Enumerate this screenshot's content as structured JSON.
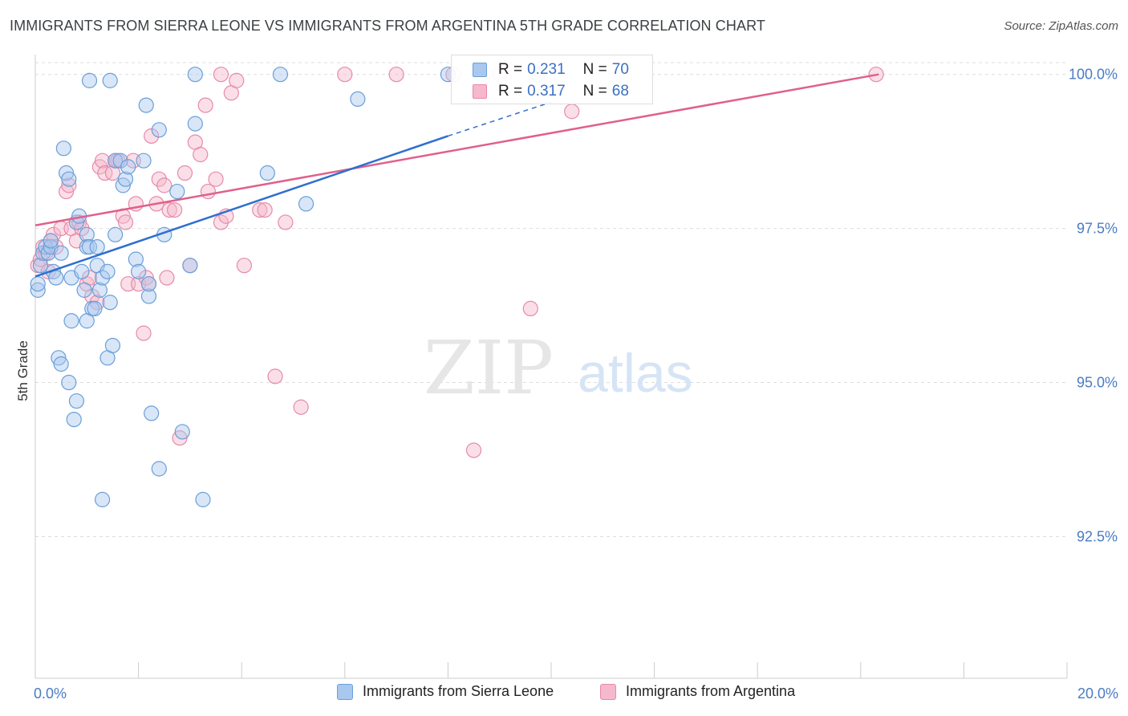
{
  "title": "IMMIGRANTS FROM SIERRA LEONE VS IMMIGRANTS FROM ARGENTINA 5TH GRADE CORRELATION CHART",
  "source": "Source: ZipAtlas.com",
  "watermark": {
    "zip": "ZIP",
    "atlas": "atlas"
  },
  "colors": {
    "blue_fill": "#a8c8f0",
    "blue_stroke": "#6a9fd8",
    "blue_line": "#2f6fcf",
    "pink_fill": "#f5b8cc",
    "pink_stroke": "#e88aa8",
    "pink_line": "#e0608a",
    "tick_text": "#4a7cc4",
    "grid": "#dddddd"
  },
  "legend": {
    "rows": [
      {
        "r_label": "R =",
        "r_value": "0.231",
        "n_label": "N =",
        "n_value": "70"
      },
      {
        "r_label": "R =",
        "r_value": "0.317",
        "n_label": "N =",
        "n_value": "68"
      }
    ]
  },
  "bottom_legend": {
    "sierra_leone": "Immigrants from Sierra Leone",
    "argentina": "Immigrants from Argentina"
  },
  "chart_data": {
    "type": "scatter",
    "title": "IMMIGRANTS FROM SIERRA LEONE VS IMMIGRANTS FROM ARGENTINA 5TH GRADE CORRELATION CHART",
    "xlabel": "",
    "ylabel": "5th Grade",
    "xlim": [
      0,
      20
    ],
    "ylim": [
      90.2,
      100.4
    ],
    "x_tick_labels": [
      {
        "value": 0,
        "label": "0.0%"
      },
      {
        "value": 20,
        "label": "20.0%"
      }
    ],
    "y_tick_labels": [
      {
        "value": 100,
        "label": "100.0%"
      },
      {
        "value": 97.5,
        "label": "97.5%"
      },
      {
        "value": 95,
        "label": "95.0%"
      },
      {
        "value": 92.5,
        "label": "92.5%"
      }
    ],
    "grid": "horizontal dashed",
    "legend_position": "top-center",
    "series": [
      {
        "name": "Immigrants from Sierra Leone",
        "r": 0.231,
        "n": 70,
        "trend": {
          "x": [
            0,
            8.0
          ],
          "y": [
            96.72,
            99.0
          ],
          "dashed_to": [
            10.0,
            99.55
          ]
        },
        "points": [
          [
            0.05,
            96.5
          ],
          [
            0.05,
            96.6
          ],
          [
            0.1,
            96.9
          ],
          [
            0.15,
            97.1
          ],
          [
            0.2,
            97.2
          ],
          [
            0.25,
            97.1
          ],
          [
            0.3,
            97.2
          ],
          [
            0.3,
            97.3
          ],
          [
            0.35,
            96.8
          ],
          [
            0.4,
            96.7
          ],
          [
            0.45,
            95.4
          ],
          [
            0.5,
            95.3
          ],
          [
            0.55,
            98.8
          ],
          [
            0.6,
            98.4
          ],
          [
            0.65,
            98.3
          ],
          [
            0.5,
            97.1
          ],
          [
            0.7,
            96.7
          ],
          [
            0.8,
            97.6
          ],
          [
            0.85,
            97.7
          ],
          [
            0.65,
            95.0
          ],
          [
            0.7,
            96.0
          ],
          [
            0.75,
            94.4
          ],
          [
            0.8,
            94.7
          ],
          [
            0.9,
            96.8
          ],
          [
            1.0,
            97.4
          ],
          [
            1.0,
            97.2
          ],
          [
            1.05,
            97.2
          ],
          [
            0.95,
            96.5
          ],
          [
            1.1,
            96.2
          ],
          [
            1.15,
            96.2
          ],
          [
            1.0,
            96.0
          ],
          [
            1.2,
            97.2
          ],
          [
            1.2,
            96.9
          ],
          [
            1.25,
            96.5
          ],
          [
            1.3,
            96.7
          ],
          [
            1.4,
            96.8
          ],
          [
            1.3,
            93.1
          ],
          [
            1.4,
            95.4
          ],
          [
            1.5,
            95.6
          ],
          [
            1.45,
            96.3
          ],
          [
            1.55,
            97.4
          ],
          [
            1.55,
            98.6
          ],
          [
            1.65,
            98.6
          ],
          [
            1.7,
            98.2
          ],
          [
            1.75,
            98.3
          ],
          [
            1.8,
            98.5
          ],
          [
            1.95,
            97.0
          ],
          [
            2.0,
            96.8
          ],
          [
            2.1,
            98.6
          ],
          [
            2.15,
            99.5
          ],
          [
            2.2,
            96.4
          ],
          [
            2.2,
            96.6
          ],
          [
            2.25,
            94.5
          ],
          [
            2.4,
            99.1
          ],
          [
            2.4,
            93.6
          ],
          [
            2.5,
            97.4
          ],
          [
            2.75,
            98.1
          ],
          [
            2.85,
            94.2
          ],
          [
            3.0,
            96.9
          ],
          [
            3.1,
            99.2
          ],
          [
            3.25,
            93.1
          ],
          [
            4.5,
            98.4
          ],
          [
            4.75,
            100.0
          ],
          [
            5.25,
            97.9
          ],
          [
            6.25,
            99.6
          ],
          [
            8.0,
            100.0
          ],
          [
            9.75,
            100.0
          ],
          [
            1.45,
            99.9
          ],
          [
            1.05,
            99.9
          ],
          [
            3.1,
            100.0
          ]
        ]
      },
      {
        "name": "Immigrants from Argentina",
        "r": 0.317,
        "n": 68,
        "trend": {
          "x": [
            0,
            16.35
          ],
          "y": [
            97.55,
            100.0
          ]
        },
        "points": [
          [
            0.05,
            96.9
          ],
          [
            0.1,
            97.0
          ],
          [
            0.15,
            97.2
          ],
          [
            0.2,
            97.1
          ],
          [
            0.25,
            96.8
          ],
          [
            0.3,
            97.3
          ],
          [
            0.35,
            97.4
          ],
          [
            0.4,
            97.2
          ],
          [
            0.5,
            97.5
          ],
          [
            0.6,
            98.1
          ],
          [
            0.65,
            98.2
          ],
          [
            0.7,
            97.5
          ],
          [
            0.8,
            97.3
          ],
          [
            0.85,
            97.6
          ],
          [
            0.9,
            97.5
          ],
          [
            1.0,
            96.6
          ],
          [
            1.05,
            96.7
          ],
          [
            1.1,
            96.4
          ],
          [
            1.2,
            96.3
          ],
          [
            1.25,
            98.5
          ],
          [
            1.3,
            98.6
          ],
          [
            1.35,
            98.4
          ],
          [
            1.5,
            98.4
          ],
          [
            1.55,
            98.6
          ],
          [
            1.6,
            98.6
          ],
          [
            1.7,
            97.7
          ],
          [
            1.75,
            97.6
          ],
          [
            1.8,
            96.6
          ],
          [
            1.9,
            98.6
          ],
          [
            1.95,
            97.9
          ],
          [
            2.0,
            96.6
          ],
          [
            2.1,
            95.8
          ],
          [
            2.15,
            96.7
          ],
          [
            2.2,
            96.6
          ],
          [
            2.25,
            99.0
          ],
          [
            2.35,
            97.9
          ],
          [
            2.4,
            98.3
          ],
          [
            2.5,
            98.2
          ],
          [
            2.55,
            96.7
          ],
          [
            2.6,
            97.8
          ],
          [
            2.7,
            97.8
          ],
          [
            2.8,
            94.1
          ],
          [
            2.9,
            98.4
          ],
          [
            3.0,
            96.9
          ],
          [
            3.1,
            98.9
          ],
          [
            3.2,
            98.7
          ],
          [
            3.3,
            99.5
          ],
          [
            3.35,
            98.1
          ],
          [
            3.5,
            98.3
          ],
          [
            3.6,
            97.6
          ],
          [
            3.7,
            97.7
          ],
          [
            3.8,
            99.7
          ],
          [
            3.9,
            99.9
          ],
          [
            4.05,
            96.9
          ],
          [
            4.35,
            97.8
          ],
          [
            4.45,
            97.8
          ],
          [
            4.65,
            95.1
          ],
          [
            4.85,
            97.6
          ],
          [
            5.15,
            94.6
          ],
          [
            6.0,
            100.0
          ],
          [
            7.0,
            100.0
          ],
          [
            8.1,
            100.0
          ],
          [
            8.5,
            93.9
          ],
          [
            9.0,
            100.0
          ],
          [
            9.6,
            96.2
          ],
          [
            10.4,
            99.4
          ],
          [
            16.3,
            100.0
          ],
          [
            3.6,
            100.0
          ]
        ]
      }
    ]
  }
}
